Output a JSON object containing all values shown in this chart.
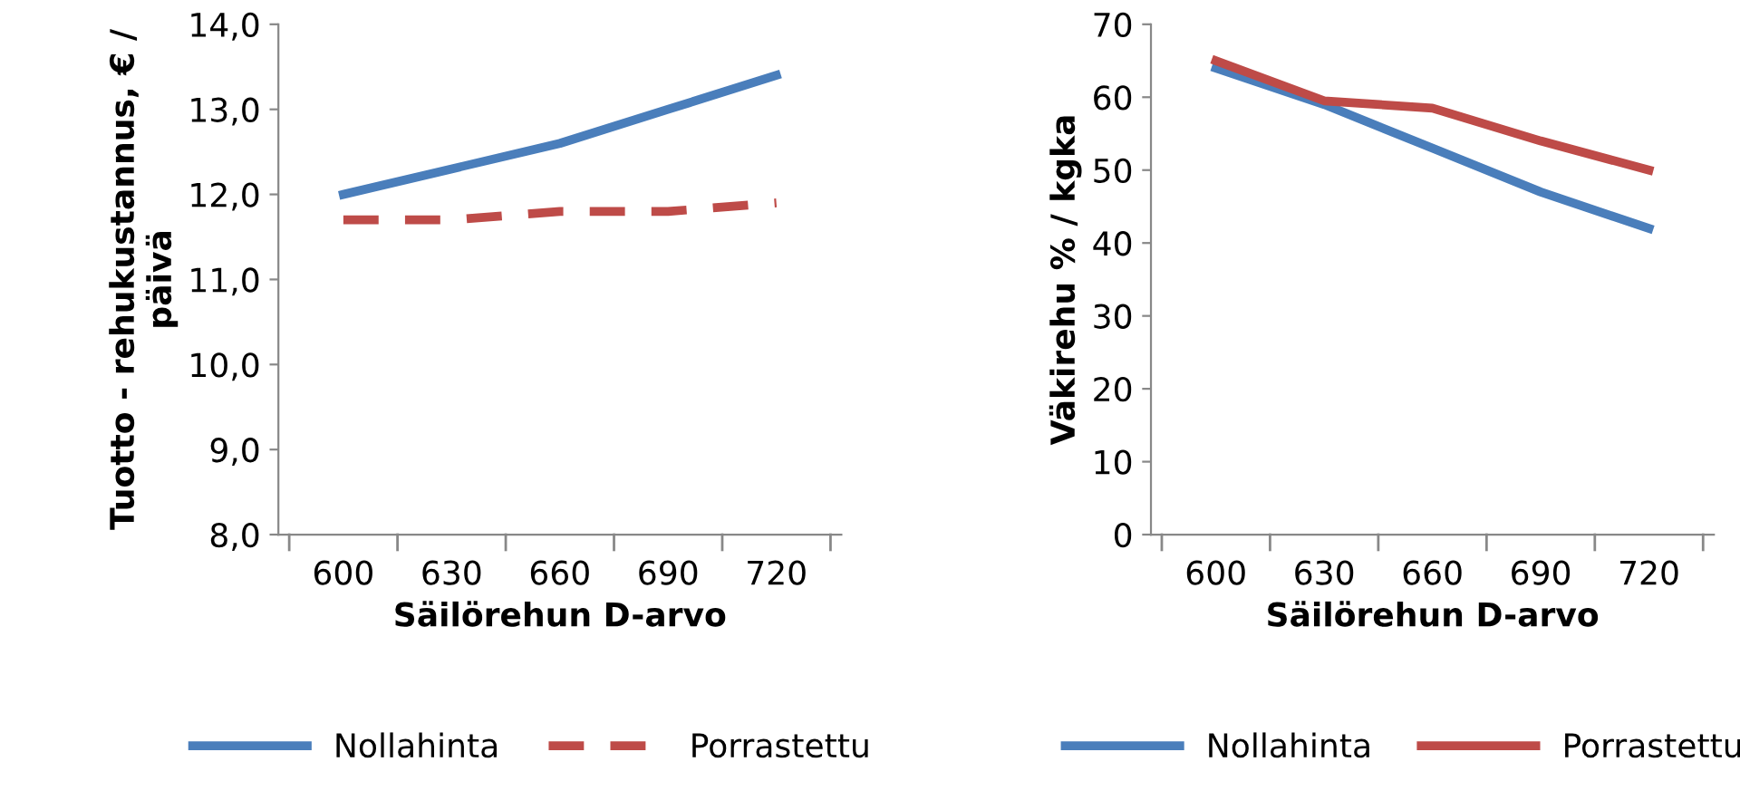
{
  "chart_data": [
    {
      "type": "line",
      "xlabel": "Säilörehun D-arvo",
      "ylabel": "Tuotto - rehukustannus, € /\npäivä",
      "categories": [
        "600",
        "630",
        "660",
        "690",
        "720"
      ],
      "series": [
        {
          "name": "Nollahinta",
          "color": "#4a7ebb",
          "line_style": "solid",
          "values": [
            12.0,
            12.3,
            12.6,
            13.0,
            13.4
          ]
        },
        {
          "name": "Porrastettu",
          "color": "#be4b48",
          "line_style": "dashed",
          "values": [
            11.7,
            11.7,
            11.8,
            11.8,
            11.9
          ]
        }
      ],
      "ylim": [
        8,
        14
      ],
      "yticks": [
        {
          "value": 8,
          "label": "8,0"
        },
        {
          "value": 9,
          "label": "9,0"
        },
        {
          "value": 10,
          "label": "10,0"
        },
        {
          "value": 11,
          "label": "11,0"
        },
        {
          "value": 12,
          "label": "12,0"
        },
        {
          "value": 13,
          "label": "13,0"
        },
        {
          "value": 14,
          "label": "14,0"
        }
      ],
      "grid": false,
      "legend": "bottom",
      "marker": "none"
    },
    {
      "type": "line",
      "xlabel": "Säilörehun D-arvo",
      "ylabel": "Väkirehu % / kgka",
      "categories": [
        "600",
        "630",
        "660",
        "690",
        "720"
      ],
      "series": [
        {
          "name": "Nollahinta",
          "color": "#4a7ebb",
          "line_style": "solid",
          "values": [
            64,
            59,
            53,
            47,
            42
          ]
        },
        {
          "name": "Porrastettu",
          "color": "#be4b48",
          "line_style": "solid",
          "values": [
            65,
            59.5,
            58.5,
            54,
            50
          ]
        }
      ],
      "ylim": [
        0,
        70
      ],
      "yticks": [
        0,
        10,
        20,
        30,
        40,
        50,
        60,
        70
      ],
      "grid": false,
      "legend": "bottom",
      "marker": "none"
    }
  ]
}
